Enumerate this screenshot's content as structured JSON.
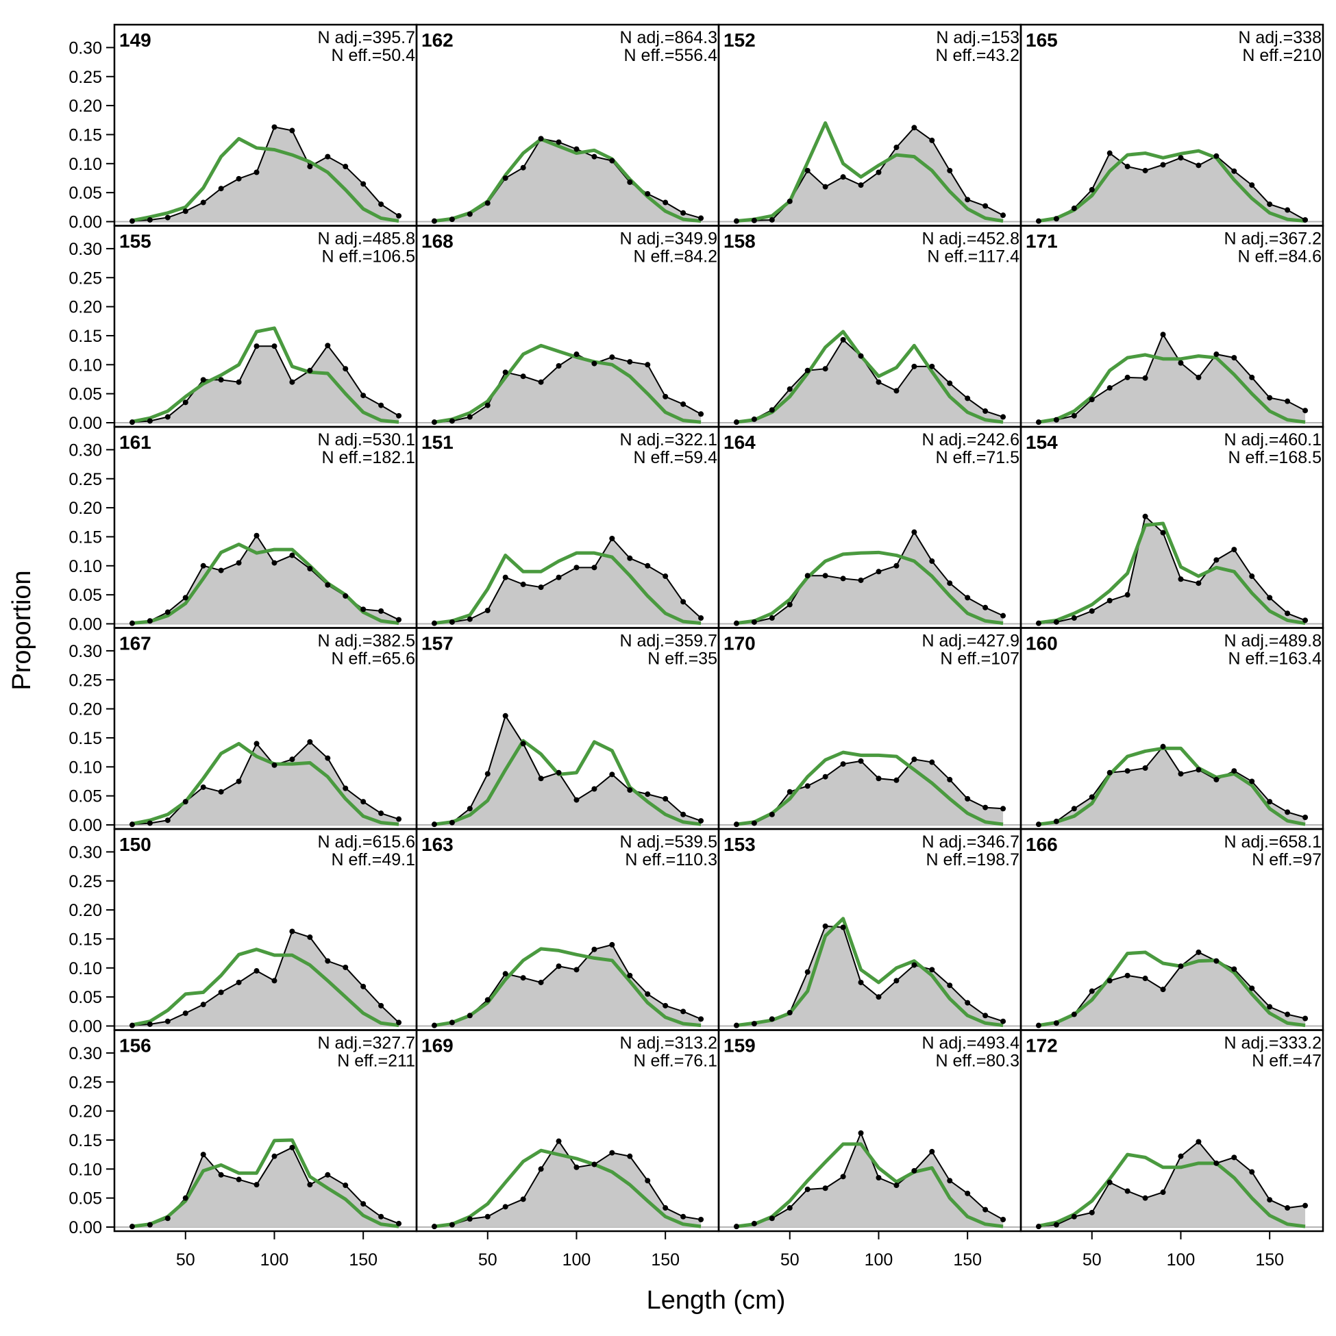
{
  "chart_data": {
    "type": "area",
    "xlabel": "Length (cm)",
    "ylabel": "Proportion",
    "xlim": [
      10,
      180
    ],
    "ylim": [
      0,
      0.33
    ],
    "xticks": [
      "50",
      "100",
      "150"
    ],
    "yticks": [
      "0.00",
      "0.05",
      "0.10",
      "0.15",
      "0.20",
      "0.25",
      "0.30"
    ],
    "x": [
      20,
      30,
      40,
      50,
      60,
      70,
      80,
      90,
      100,
      110,
      120,
      130,
      140,
      150,
      160,
      170
    ],
    "colors": {
      "observed_fill": "#c8c8c8",
      "observed_line": "#000000",
      "expected_line": "#4a9a3f",
      "zero_line": "#b4b4b4"
    },
    "panels": [
      {
        "label": "149",
        "n_adj": "N adj.=395.7",
        "n_eff": "N eff.=50.4",
        "obs": [
          0.001,
          0.003,
          0.007,
          0.018,
          0.033,
          0.057,
          0.074,
          0.085,
          0.163,
          0.157,
          0.095,
          0.112,
          0.095,
          0.065,
          0.03,
          0.01
        ],
        "exp": [
          0.002,
          0.008,
          0.015,
          0.025,
          0.058,
          0.112,
          0.143,
          0.127,
          0.124,
          0.115,
          0.103,
          0.085,
          0.055,
          0.022,
          0.006,
          0.001
        ]
      },
      {
        "label": "155",
        "n_adj": "N adj.=485.8",
        "n_eff": "N eff.=106.5",
        "obs": [
          0.001,
          0.003,
          0.01,
          0.035,
          0.074,
          0.074,
          0.07,
          0.132,
          0.132,
          0.07,
          0.09,
          0.133,
          0.093,
          0.047,
          0.03,
          0.012
        ],
        "exp": [
          0.002,
          0.008,
          0.02,
          0.045,
          0.067,
          0.082,
          0.1,
          0.157,
          0.163,
          0.097,
          0.087,
          0.085,
          0.05,
          0.018,
          0.004,
          0.001
        ]
      },
      {
        "label": "161",
        "n_adj": "N adj.=530.1",
        "n_eff": "N eff.=182.1",
        "obs": [
          0.001,
          0.005,
          0.02,
          0.045,
          0.1,
          0.092,
          0.105,
          0.152,
          0.105,
          0.118,
          0.095,
          0.067,
          0.048,
          0.025,
          0.022,
          0.007
        ],
        "exp": [
          0.001,
          0.004,
          0.014,
          0.035,
          0.078,
          0.123,
          0.137,
          0.122,
          0.128,
          0.128,
          0.1,
          0.07,
          0.05,
          0.02,
          0.005,
          0.001
        ]
      },
      {
        "label": "167",
        "n_adj": "N adj.=382.5",
        "n_eff": "N eff.=65.6",
        "obs": [
          0.001,
          0.003,
          0.008,
          0.04,
          0.065,
          0.057,
          0.075,
          0.14,
          0.103,
          0.113,
          0.143,
          0.115,
          0.063,
          0.04,
          0.02,
          0.01
        ],
        "exp": [
          0.002,
          0.008,
          0.018,
          0.04,
          0.08,
          0.123,
          0.14,
          0.118,
          0.105,
          0.105,
          0.107,
          0.083,
          0.045,
          0.015,
          0.004,
          0.001
        ]
      },
      {
        "label": "150",
        "n_adj": "N adj.=615.6",
        "n_eff": "N eff.=49.1",
        "obs": [
          0.001,
          0.003,
          0.008,
          0.022,
          0.037,
          0.058,
          0.075,
          0.095,
          0.078,
          0.163,
          0.153,
          0.112,
          0.101,
          0.068,
          0.035,
          0.006
        ],
        "exp": [
          0.002,
          0.008,
          0.027,
          0.055,
          0.058,
          0.087,
          0.123,
          0.132,
          0.122,
          0.122,
          0.105,
          0.078,
          0.05,
          0.022,
          0.005,
          0.001
        ]
      },
      {
        "label": "156",
        "n_adj": "N adj.=327.7",
        "n_eff": "N eff.=211",
        "obs": [
          0.001,
          0.004,
          0.015,
          0.05,
          0.125,
          0.09,
          0.082,
          0.073,
          0.122,
          0.137,
          0.073,
          0.09,
          0.072,
          0.04,
          0.018,
          0.006
        ],
        "exp": [
          0.001,
          0.005,
          0.018,
          0.045,
          0.097,
          0.107,
          0.093,
          0.093,
          0.149,
          0.15,
          0.087,
          0.067,
          0.048,
          0.02,
          0.005,
          0.001
        ]
      },
      {
        "label": "162",
        "n_adj": "N adj.=864.3",
        "n_eff": "N eff.=556.4",
        "obs": [
          0.001,
          0.004,
          0.013,
          0.032,
          0.075,
          0.093,
          0.143,
          0.137,
          0.125,
          0.112,
          0.105,
          0.068,
          0.048,
          0.033,
          0.015,
          0.006
        ],
        "exp": [
          0.001,
          0.005,
          0.015,
          0.035,
          0.08,
          0.118,
          0.142,
          0.13,
          0.118,
          0.123,
          0.108,
          0.073,
          0.043,
          0.018,
          0.004,
          0.001
        ]
      },
      {
        "label": "168",
        "n_adj": "N adj.=349.9",
        "n_eff": "N eff.=84.2",
        "obs": [
          0.001,
          0.003,
          0.01,
          0.03,
          0.087,
          0.08,
          0.07,
          0.098,
          0.118,
          0.102,
          0.113,
          0.105,
          0.1,
          0.045,
          0.032,
          0.015
        ],
        "exp": [
          0.001,
          0.006,
          0.017,
          0.037,
          0.078,
          0.118,
          0.133,
          0.123,
          0.113,
          0.105,
          0.1,
          0.08,
          0.05,
          0.018,
          0.004,
          0.001
        ]
      },
      {
        "label": "151",
        "n_adj": "N adj.=322.1",
        "n_eff": "N eff.=59.4",
        "obs": [
          0.001,
          0.003,
          0.008,
          0.023,
          0.08,
          0.068,
          0.063,
          0.08,
          0.097,
          0.097,
          0.147,
          0.113,
          0.1,
          0.082,
          0.038,
          0.01
        ],
        "exp": [
          0.001,
          0.005,
          0.015,
          0.06,
          0.118,
          0.09,
          0.09,
          0.108,
          0.122,
          0.122,
          0.115,
          0.083,
          0.048,
          0.018,
          0.004,
          0.001
        ]
      },
      {
        "label": "157",
        "n_adj": "N adj.=359.7",
        "n_eff": "N eff.=35",
        "obs": [
          0.001,
          0.004,
          0.028,
          0.088,
          0.188,
          0.14,
          0.08,
          0.09,
          0.043,
          0.062,
          0.087,
          0.06,
          0.053,
          0.045,
          0.018,
          0.007
        ],
        "exp": [
          0.001,
          0.005,
          0.017,
          0.042,
          0.095,
          0.145,
          0.122,
          0.087,
          0.09,
          0.143,
          0.128,
          0.065,
          0.04,
          0.018,
          0.005,
          0.001
        ]
      },
      {
        "label": "163",
        "n_adj": "N adj.=539.5",
        "n_eff": "N eff.=110.3",
        "obs": [
          0.001,
          0.006,
          0.018,
          0.045,
          0.09,
          0.083,
          0.075,
          0.103,
          0.097,
          0.132,
          0.14,
          0.087,
          0.055,
          0.035,
          0.025,
          0.012
        ],
        "exp": [
          0.001,
          0.006,
          0.018,
          0.04,
          0.08,
          0.113,
          0.133,
          0.13,
          0.123,
          0.117,
          0.113,
          0.077,
          0.04,
          0.015,
          0.004,
          0.001
        ]
      },
      {
        "label": "169",
        "n_adj": "N adj.=313.2",
        "n_eff": "N eff.=76.1",
        "obs": [
          0.001,
          0.004,
          0.014,
          0.018,
          0.035,
          0.048,
          0.1,
          0.148,
          0.103,
          0.108,
          0.128,
          0.122,
          0.08,
          0.033,
          0.018,
          0.013
        ],
        "exp": [
          0.001,
          0.005,
          0.018,
          0.04,
          0.077,
          0.113,
          0.132,
          0.125,
          0.118,
          0.108,
          0.095,
          0.073,
          0.045,
          0.018,
          0.005,
          0.001
        ]
      },
      {
        "label": "152",
        "n_adj": "N adj.=153",
        "n_eff": "N eff.=43.2",
        "obs": [
          0.001,
          0.002,
          0.003,
          0.035,
          0.088,
          0.06,
          0.077,
          0.063,
          0.085,
          0.128,
          0.162,
          0.14,
          0.088,
          0.038,
          0.027,
          0.011
        ],
        "exp": [
          0.001,
          0.004,
          0.01,
          0.035,
          0.102,
          0.17,
          0.1,
          0.077,
          0.097,
          0.115,
          0.112,
          0.088,
          0.052,
          0.022,
          0.006,
          0.001
        ]
      },
      {
        "label": "158",
        "n_adj": "N adj.=452.8",
        "n_eff": "N eff.=117.4",
        "obs": [
          0.001,
          0.006,
          0.022,
          0.058,
          0.09,
          0.093,
          0.143,
          0.115,
          0.07,
          0.055,
          0.097,
          0.097,
          0.068,
          0.042,
          0.02,
          0.01
        ],
        "exp": [
          0.001,
          0.005,
          0.018,
          0.045,
          0.085,
          0.13,
          0.157,
          0.115,
          0.08,
          0.095,
          0.133,
          0.088,
          0.045,
          0.018,
          0.005,
          0.001
        ]
      },
      {
        "label": "164",
        "n_adj": "N adj.=242.6",
        "n_eff": "N eff.=71.5",
        "obs": [
          0.001,
          0.003,
          0.01,
          0.033,
          0.083,
          0.083,
          0.078,
          0.075,
          0.09,
          0.1,
          0.158,
          0.108,
          0.07,
          0.045,
          0.028,
          0.014
        ],
        "exp": [
          0.001,
          0.005,
          0.018,
          0.042,
          0.08,
          0.108,
          0.12,
          0.122,
          0.123,
          0.118,
          0.108,
          0.082,
          0.048,
          0.018,
          0.005,
          0.001
        ]
      },
      {
        "label": "170",
        "n_adj": "N adj.=427.9",
        "n_eff": "N eff.=107",
        "obs": [
          0.001,
          0.003,
          0.018,
          0.057,
          0.067,
          0.083,
          0.105,
          0.11,
          0.08,
          0.077,
          0.113,
          0.108,
          0.078,
          0.045,
          0.03,
          0.028
        ],
        "exp": [
          0.001,
          0.005,
          0.02,
          0.045,
          0.083,
          0.112,
          0.125,
          0.12,
          0.12,
          0.118,
          0.095,
          0.072,
          0.045,
          0.02,
          0.005,
          0.001
        ]
      },
      {
        "label": "153",
        "n_adj": "N adj.=346.7",
        "n_eff": "N eff.=198.7",
        "obs": [
          0.001,
          0.004,
          0.012,
          0.023,
          0.093,
          0.172,
          0.17,
          0.075,
          0.05,
          0.078,
          0.105,
          0.097,
          0.07,
          0.04,
          0.018,
          0.008
        ],
        "exp": [
          0.001,
          0.005,
          0.01,
          0.022,
          0.06,
          0.155,
          0.185,
          0.097,
          0.075,
          0.1,
          0.112,
          0.087,
          0.047,
          0.018,
          0.005,
          0.001
        ]
      },
      {
        "label": "159",
        "n_adj": "N adj.=493.4",
        "n_eff": "N eff.=80.3",
        "obs": [
          0.001,
          0.006,
          0.015,
          0.033,
          0.065,
          0.067,
          0.087,
          0.162,
          0.085,
          0.072,
          0.097,
          0.13,
          0.08,
          0.058,
          0.03,
          0.013
        ],
        "exp": [
          0.001,
          0.005,
          0.018,
          0.045,
          0.08,
          0.112,
          0.143,
          0.143,
          0.102,
          0.078,
          0.095,
          0.102,
          0.05,
          0.018,
          0.005,
          0.001
        ]
      },
      {
        "label": "165",
        "n_adj": "N adj.=338",
        "n_eff": "N eff.=210",
        "obs": [
          0.001,
          0.005,
          0.023,
          0.055,
          0.118,
          0.095,
          0.088,
          0.098,
          0.11,
          0.097,
          0.113,
          0.087,
          0.063,
          0.03,
          0.02,
          0.003
        ],
        "exp": [
          0.001,
          0.006,
          0.02,
          0.045,
          0.087,
          0.115,
          0.118,
          0.11,
          0.117,
          0.122,
          0.11,
          0.072,
          0.04,
          0.015,
          0.004,
          0.001
        ]
      },
      {
        "label": "171",
        "n_adj": "N adj.=367.2",
        "n_eff": "N eff.=84.6",
        "obs": [
          0.001,
          0.005,
          0.012,
          0.04,
          0.06,
          0.078,
          0.077,
          0.152,
          0.103,
          0.078,
          0.118,
          0.112,
          0.078,
          0.043,
          0.037,
          0.021
        ],
        "exp": [
          0.001,
          0.006,
          0.02,
          0.045,
          0.09,
          0.112,
          0.117,
          0.11,
          0.11,
          0.115,
          0.112,
          0.083,
          0.05,
          0.02,
          0.005,
          0.001
        ]
      },
      {
        "label": "154",
        "n_adj": "N adj.=460.1",
        "n_eff": "N eff.=168.5",
        "obs": [
          0.001,
          0.003,
          0.01,
          0.022,
          0.04,
          0.05,
          0.185,
          0.157,
          0.077,
          0.07,
          0.11,
          0.128,
          0.082,
          0.045,
          0.018,
          0.006
        ],
        "exp": [
          0.002,
          0.006,
          0.018,
          0.033,
          0.057,
          0.087,
          0.17,
          0.173,
          0.098,
          0.082,
          0.097,
          0.09,
          0.053,
          0.022,
          0.006,
          0.001
        ]
      },
      {
        "label": "160",
        "n_adj": "N adj.=489.8",
        "n_eff": "N eff.=163.4",
        "obs": [
          0.001,
          0.006,
          0.028,
          0.048,
          0.09,
          0.093,
          0.098,
          0.135,
          0.088,
          0.095,
          0.078,
          0.093,
          0.075,
          0.04,
          0.022,
          0.013
        ],
        "exp": [
          0.001,
          0.005,
          0.015,
          0.037,
          0.087,
          0.118,
          0.127,
          0.132,
          0.132,
          0.098,
          0.082,
          0.088,
          0.068,
          0.028,
          0.007,
          0.001
        ]
      },
      {
        "label": "166",
        "n_adj": "N adj.=658.1",
        "n_eff": "N eff.=97",
        "obs": [
          0.001,
          0.005,
          0.02,
          0.06,
          0.078,
          0.087,
          0.082,
          0.063,
          0.103,
          0.127,
          0.112,
          0.098,
          0.065,
          0.033,
          0.02,
          0.013
        ],
        "exp": [
          0.001,
          0.006,
          0.02,
          0.045,
          0.083,
          0.125,
          0.127,
          0.108,
          0.103,
          0.112,
          0.113,
          0.092,
          0.055,
          0.022,
          0.005,
          0.001
        ]
      },
      {
        "label": "172",
        "n_adj": "N adj.=333.2",
        "n_eff": "N eff.=47",
        "obs": [
          0.001,
          0.004,
          0.018,
          0.025,
          0.077,
          0.062,
          0.05,
          0.06,
          0.122,
          0.147,
          0.11,
          0.12,
          0.095,
          0.047,
          0.033,
          0.037
        ],
        "exp": [
          0.002,
          0.008,
          0.022,
          0.045,
          0.083,
          0.125,
          0.12,
          0.103,
          0.103,
          0.11,
          0.11,
          0.085,
          0.05,
          0.02,
          0.005,
          0.001
        ]
      }
    ]
  }
}
